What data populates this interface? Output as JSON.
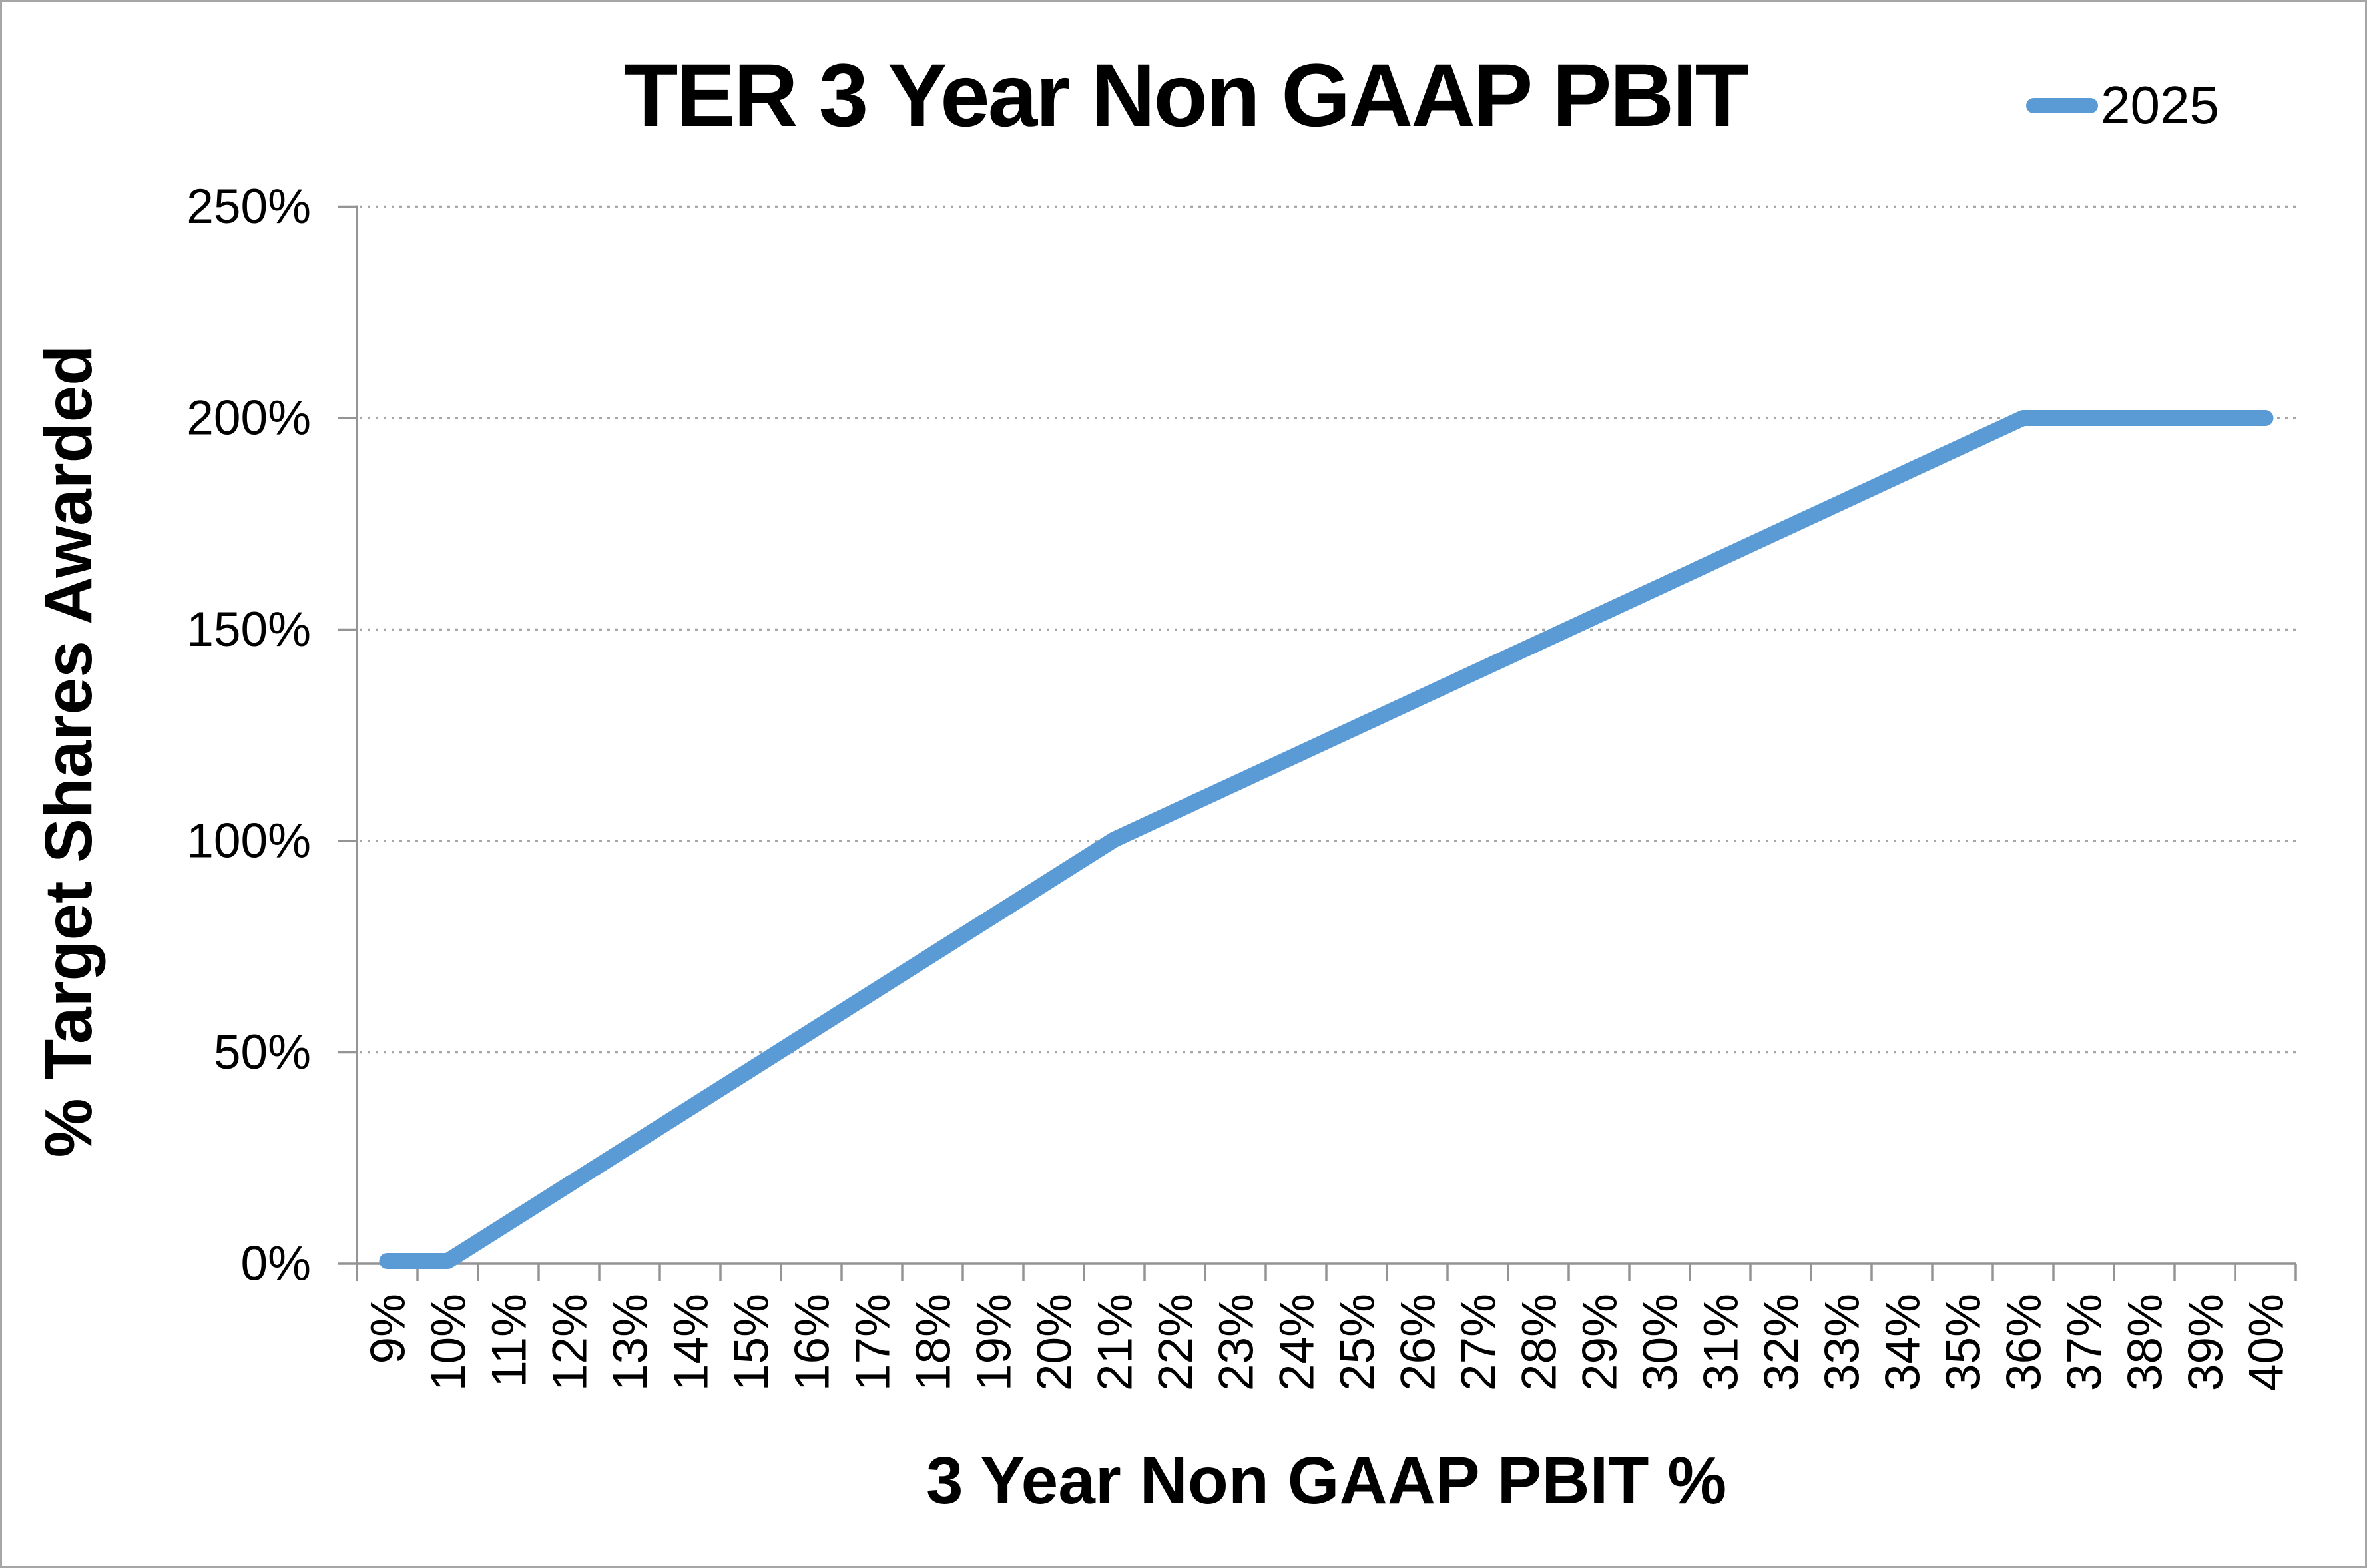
{
  "chart_data": {
    "type": "line",
    "title": "TER 3 Year Non GAAP PBIT",
    "xlabel": "3 Year Non GAAP PBIT %",
    "ylabel": "% Target Shares Awarded",
    "categories": [
      "9%",
      "10%",
      "11%",
      "12%",
      "13%",
      "14%",
      "15%",
      "16%",
      "17%",
      "18%",
      "19%",
      "20%",
      "21%",
      "22%",
      "23%",
      "24%",
      "25%",
      "26%",
      "27%",
      "28%",
      "29%",
      "30%",
      "31%",
      "32%",
      "33%",
      "34%",
      "35%",
      "36%",
      "37%",
      "38%",
      "39%",
      "40%"
    ],
    "series": [
      {
        "name": "2025",
        "color": "#5B9BD5",
        "values": [
          0,
          0,
          9.09,
          18.18,
          27.27,
          36.36,
          45.45,
          54.55,
          63.64,
          72.73,
          81.82,
          90.91,
          100,
          106.67,
          113.33,
          120,
          126.67,
          133.33,
          140,
          146.67,
          153.33,
          160,
          166.67,
          173.33,
          180,
          186.67,
          193.33,
          200,
          200,
          200,
          200,
          200
        ]
      }
    ],
    "y_ticks": [
      "0%",
      "50%",
      "100%",
      "150%",
      "200%",
      "250%"
    ],
    "y_tick_values": [
      0,
      50,
      100,
      150,
      200,
      250
    ],
    "ylim": [
      0,
      250
    ],
    "grid": "horizontal-dotted",
    "legend_position": "top-right",
    "axis_color": "#949494",
    "grid_color": "#A6A6A6",
    "text_color": "#000000",
    "background": "#FFFFFF"
  }
}
